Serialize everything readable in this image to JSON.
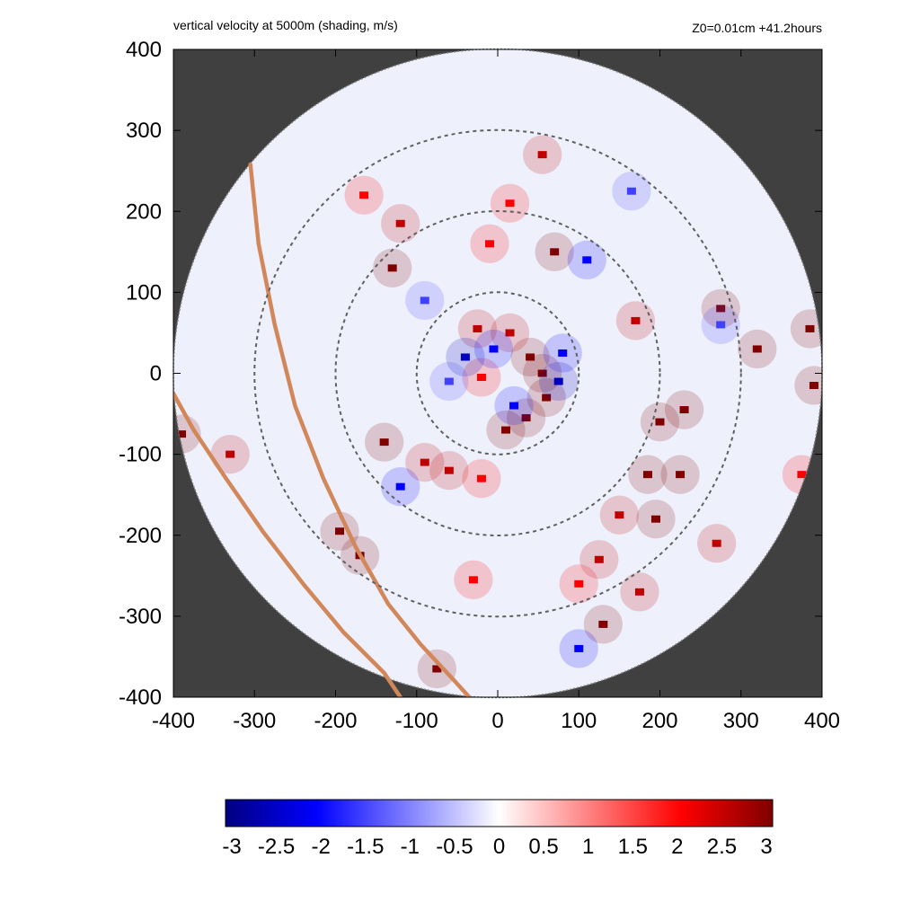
{
  "chart_data": {
    "type": "heatmap",
    "title": "vertical velocity at 5000m (shading, m/s)",
    "subtitle": "Z0=0.01cm  +41.2hours",
    "xlabel": "",
    "ylabel": "",
    "xlim": [
      -400,
      400
    ],
    "ylim": [
      -400,
      400
    ],
    "x_ticks": [
      "-400",
      "-300",
      "-200",
      "-100",
      "0",
      "100",
      "200",
      "300",
      "400"
    ],
    "y_ticks": [
      "400",
      "300",
      "200",
      "100",
      "0",
      "-100",
      "-200",
      "-300",
      "-400"
    ],
    "x_tick_values": [
      -400,
      -300,
      -200,
      -100,
      0,
      100,
      200,
      300,
      400
    ],
    "y_tick_values": [
      400,
      300,
      200,
      100,
      0,
      -100,
      -200,
      -300,
      -400
    ],
    "domain_radius": 400,
    "range_rings": [
      100,
      200,
      300
    ],
    "coastlines": [
      [
        [
          -305,
          258
        ],
        [
          -295,
          160
        ],
        [
          -275,
          60
        ],
        [
          -250,
          -40
        ],
        [
          -215,
          -130
        ],
        [
          -175,
          -215
        ],
        [
          -135,
          -285
        ],
        [
          -95,
          -335
        ],
        [
          -55,
          -378
        ],
        [
          -35,
          -400
        ]
      ],
      [
        [
          -400,
          -25
        ],
        [
          -375,
          -70
        ],
        [
          -335,
          -130
        ],
        [
          -290,
          -195
        ],
        [
          -240,
          -260
        ],
        [
          -190,
          -320
        ],
        [
          -140,
          -370
        ],
        [
          -120,
          -400
        ]
      ]
    ],
    "cells": [
      {
        "x": 40,
        "y": 20,
        "v": 3
      },
      {
        "x": 55,
        "y": 0,
        "v": 3
      },
      {
        "x": 60,
        "y": -30,
        "v": 3
      },
      {
        "x": 35,
        "y": -55,
        "v": 3
      },
      {
        "x": 10,
        "y": -70,
        "v": 3
      },
      {
        "x": -25,
        "y": 55,
        "v": 2.5
      },
      {
        "x": -20,
        "y": -5,
        "v": 2
      },
      {
        "x": 15,
        "y": 50,
        "v": 2.5
      },
      {
        "x": -40,
        "y": 20,
        "v": -2.5
      },
      {
        "x": -5,
        "y": 30,
        "v": -2
      },
      {
        "x": 75,
        "y": -10,
        "v": -2.5
      },
      {
        "x": 80,
        "y": 25,
        "v": -2
      },
      {
        "x": 20,
        "y": -40,
        "v": -2
      },
      {
        "x": -60,
        "y": -10,
        "v": -1.5
      },
      {
        "x": -140,
        "y": -85,
        "v": 3
      },
      {
        "x": -90,
        "y": -110,
        "v": 2.5
      },
      {
        "x": -60,
        "y": -120,
        "v": 2.5
      },
      {
        "x": -120,
        "y": -140,
        "v": -2
      },
      {
        "x": -20,
        "y": -130,
        "v": 2
      },
      {
        "x": 200,
        "y": -60,
        "v": 3
      },
      {
        "x": 230,
        "y": -45,
        "v": 3
      },
      {
        "x": 185,
        "y": -125,
        "v": 3
      },
      {
        "x": 225,
        "y": -125,
        "v": 3
      },
      {
        "x": 195,
        "y": -180,
        "v": 3
      },
      {
        "x": 150,
        "y": -175,
        "v": 2.5
      },
      {
        "x": 125,
        "y": -230,
        "v": 2.5
      },
      {
        "x": 130,
        "y": -310,
        "v": 3
      },
      {
        "x": 100,
        "y": -340,
        "v": -2
      },
      {
        "x": 275,
        "y": 80,
        "v": 3
      },
      {
        "x": 320,
        "y": 30,
        "v": 3
      },
      {
        "x": 385,
        "y": 55,
        "v": 3
      },
      {
        "x": 390,
        "y": -15,
        "v": 3
      },
      {
        "x": 275,
        "y": 60,
        "v": -1.5
      },
      {
        "x": -120,
        "y": 185,
        "v": 2.5
      },
      {
        "x": -165,
        "y": 220,
        "v": 2
      },
      {
        "x": 55,
        "y": 270,
        "v": 2.5
      },
      {
        "x": 15,
        "y": 210,
        "v": 2
      },
      {
        "x": -130,
        "y": 130,
        "v": 3
      },
      {
        "x": -10,
        "y": 160,
        "v": 2
      },
      {
        "x": 70,
        "y": 150,
        "v": 3
      },
      {
        "x": 110,
        "y": 140,
        "v": -2
      },
      {
        "x": 170,
        "y": 65,
        "v": 2.5
      },
      {
        "x": -390,
        "y": -75,
        "v": 3
      },
      {
        "x": -330,
        "y": -100,
        "v": 2.5
      },
      {
        "x": -195,
        "y": -195,
        "v": 3
      },
      {
        "x": -170,
        "y": -225,
        "v": 3
      },
      {
        "x": -75,
        "y": -365,
        "v": 3
      },
      {
        "x": 270,
        "y": -210,
        "v": 2.5
      },
      {
        "x": 375,
        "y": -125,
        "v": 2
      },
      {
        "x": 165,
        "y": 225,
        "v": -1.5
      },
      {
        "x": -90,
        "y": 90,
        "v": -1.5
      },
      {
        "x": 100,
        "y": -260,
        "v": 2
      },
      {
        "x": 175,
        "y": -270,
        "v": 2.5
      },
      {
        "x": -30,
        "y": -255,
        "v": 2
      }
    ],
    "colorbar": {
      "min": -3,
      "max": 3,
      "labels": [
        "-3",
        "-2.5",
        "-2",
        "-1.5",
        "-1",
        "-0.5",
        "0",
        "0.5",
        "1",
        "1.5",
        "2",
        "2.5",
        "3"
      ],
      "label_values": [
        -3,
        -2.5,
        -2,
        -1.5,
        -1,
        -0.5,
        0,
        0.5,
        1,
        1.5,
        2,
        2.5,
        3
      ],
      "colors": [
        "#000080",
        "#0000ff",
        "#ffffff",
        "#ff0000",
        "#800000"
      ]
    },
    "colors": {
      "background_outside": "#404040",
      "domain_fill": "#eef0fb",
      "ring": "#606060",
      "coast": "#d2875a",
      "domain_edge": "#808080"
    }
  }
}
